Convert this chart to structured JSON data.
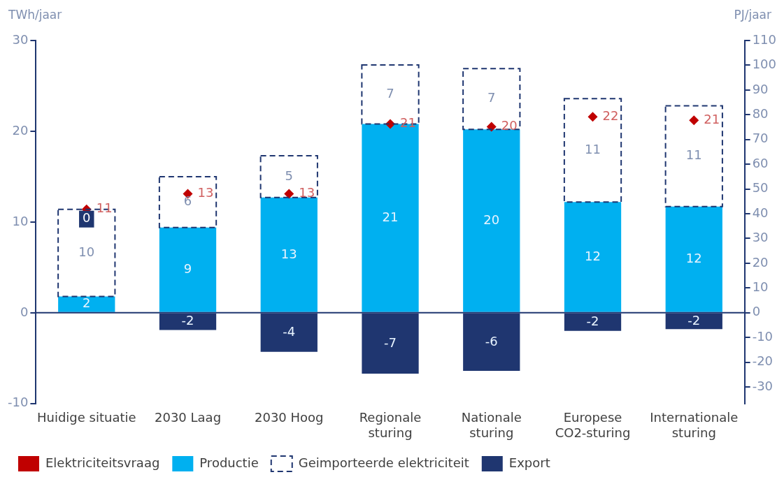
{
  "chart_data": {
    "type": "bar",
    "stacked": true,
    "ylabel": "TWh/jaar",
    "y2label": "PJ/jaar",
    "categories": [
      "Huidige situatie",
      "2030 Laag",
      "2030 Hoog",
      "Regionale sturing",
      "Nationale sturing",
      "Europese CO2-sturing",
      "Internationale sturing"
    ],
    "series": [
      {
        "name": "Elektriciteitsvraag",
        "type": "scatter",
        "color": "#c00000",
        "marker": "diamond",
        "x": [
          "Huidige situatie",
          "2030 Laag",
          "2030 Hoog",
          "Regionale sturing",
          "Nationale sturing",
          "Europese CO2-sturing",
          "Internationale sturing"
        ],
        "values": [
          11.4,
          13.1,
          13.1,
          20.8,
          20.5,
          21.6,
          21.2
        ],
        "value_labels": [
          "11",
          "13",
          "13",
          "21",
          "20",
          "22",
          "21"
        ]
      },
      {
        "name": "Productie",
        "color": "#00b0f0",
        "values": [
          1.8,
          9.4,
          12.7,
          20.8,
          20.2,
          12.2,
          11.7
        ],
        "value_labels": [
          "2",
          "9",
          "13",
          "21",
          "20",
          "12",
          "12"
        ]
      },
      {
        "name": "Geimporteerde elektriciteit",
        "color": "#1f3670",
        "line_style": "dashed",
        "values": [
          9.6,
          5.6,
          4.6,
          6.5,
          6.7,
          11.4,
          11.1
        ],
        "value_labels": [
          "10",
          "6",
          "5",
          "7",
          "7",
          "11",
          "11"
        ]
      },
      {
        "name": "Export",
        "color": "#1f3670",
        "values": [
          0,
          -1.9,
          -4.3,
          -6.7,
          -6.4,
          -2.0,
          -1.8
        ],
        "value_labels": [
          "0",
          "-2",
          "-4",
          "-7",
          "-6",
          "-2",
          "-2"
        ]
      }
    ],
    "ylim": [
      -10,
      30
    ],
    "yticks": [
      -10,
      0,
      10,
      20,
      30
    ],
    "y2lim": [
      -36.7,
      110
    ],
    "y2ticks": [
      -30,
      -20,
      -10,
      0,
      10,
      20,
      30,
      40,
      50,
      60,
      70,
      80,
      90,
      100,
      110
    ],
    "ref_lines": [
      {
        "axis": "y",
        "value": 0,
        "color": "#1f3670"
      }
    ],
    "grid": false,
    "legend": "bottom left"
  }
}
